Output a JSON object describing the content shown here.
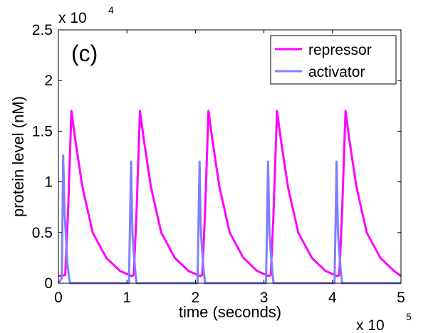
{
  "chart_data": {
    "type": "line",
    "panel_label": "(c)",
    "xlabel": "time (seconds)",
    "ylabel": "protein level (nM)",
    "xlim": [
      0,
      500000
    ],
    "ylim": [
      0,
      25000
    ],
    "x_ticks": [
      0,
      100000,
      200000,
      300000,
      400000,
      500000
    ],
    "x_tick_labels": [
      "0",
      "1",
      "2",
      "3",
      "4",
      "5"
    ],
    "y_ticks": [
      0,
      5000,
      10000,
      15000,
      20000,
      25000
    ],
    "y_tick_labels": [
      "0",
      "0.5",
      "1",
      "1.5",
      "2",
      "2.5"
    ],
    "x_exponent": {
      "base": "x 10",
      "power": "5"
    },
    "y_exponent": {
      "base": "x 10",
      "power": "4"
    },
    "legend_position": "top-right",
    "series": [
      {
        "name": "repressor",
        "color": "#ff00ff",
        "x": [
          0,
          10000,
          14000,
          19000,
          25000,
          35000,
          50000,
          70000,
          90000,
          107000,
          110000,
          114000,
          119000,
          125000,
          135000,
          150000,
          170000,
          190000,
          207000,
          210000,
          214000,
          219000,
          225000,
          235000,
          250000,
          270000,
          290000,
          307000,
          310000,
          314000,
          319000,
          325000,
          335000,
          350000,
          370000,
          390000,
          407000,
          410000,
          414000,
          419000,
          425000,
          435000,
          450000,
          470000,
          490000,
          500000
        ],
        "values": [
          700,
          800,
          7000,
          17000,
          14000,
          9500,
          5000,
          2500,
          1200,
          700,
          800,
          7000,
          17000,
          14000,
          9500,
          5000,
          2500,
          1200,
          700,
          800,
          7000,
          17000,
          14000,
          9500,
          5000,
          2500,
          1200,
          700,
          800,
          7000,
          17000,
          14000,
          9500,
          5000,
          2500,
          1200,
          700,
          800,
          7000,
          17000,
          14000,
          9500,
          5000,
          2500,
          1200,
          700
        ]
      },
      {
        "name": "activator",
        "color": "#7f7fff",
        "x": [
          0,
          5000,
          7000,
          9000,
          11000,
          13000,
          16000,
          17500,
          100000,
          103000,
          106000,
          108000,
          110000,
          112500,
          114000,
          200000,
          203000,
          206000,
          208000,
          210000,
          212500,
          214000,
          300000,
          303000,
          306000,
          308000,
          310000,
          312500,
          314000,
          400000,
          403000,
          406000,
          408000,
          410000,
          412500,
          414000,
          500000
        ],
        "values": [
          0,
          500,
          12600,
          7000,
          4500,
          2000,
          300,
          0,
          0,
          0,
          12000,
          5000,
          3000,
          1000,
          0,
          0,
          0,
          12000,
          5000,
          3000,
          1000,
          0,
          0,
          0,
          12000,
          5000,
          3000,
          1000,
          0,
          0,
          0,
          12000,
          5000,
          3000,
          1000,
          0,
          0
        ]
      }
    ]
  }
}
